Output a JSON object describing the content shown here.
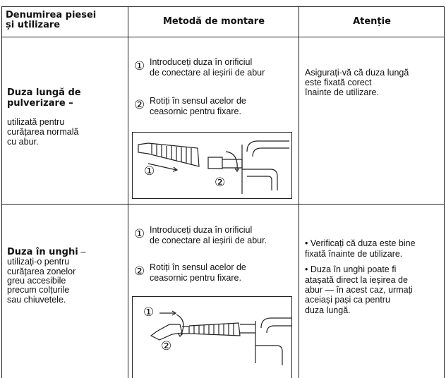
{
  "table": {
    "headers": [
      [
        "Denumirea piesei",
        "și utilizare"
      ],
      "Metodă de montare",
      "Atenție"
    ],
    "rows": [
      [
        {
          "title": [
            "Duza lungă de",
            "pulverizare –"
          ],
          "description": [
            "utilizată pentru",
            "curățarea normală",
            "cu abur."
          ]
        },
        {
          "steps": [
            {
              "marker": "①",
              "lines": [
                "Introduceți duza în orificiul",
                "de conectare al ieșirii de abur"
              ]
            },
            {
              "marker": "②",
              "lines": [
                "Rotiți în sensul acelor de",
                "ceasornic pentru fixare."
              ]
            }
          ],
          "figure_labels": [
            "①",
            "②"
          ]
        },
        {
          "notes": [
            [
              "Asigurați-vă că duza lungă",
              "este fixată corect",
              "înainte de utilizare."
            ]
          ]
        }
      ],
      [
        {
          "title": [
            "Duza în unghi",
            " –"
          ],
          "description": [
            "utilizați-o pentru",
            "curățarea zonelor",
            "greu accesibile",
            "precum colțurile",
            "sau chiuvetele."
          ]
        },
        {
          "steps": [
            {
              "marker": "①",
              "lines": [
                "Introduceți duza în orificiul",
                "de conectare al ieșirii de abur."
              ]
            },
            {
              "marker": "②",
              "lines": [
                "Rotiți în sensul acelor de",
                "ceasornic pentru fixare."
              ]
            }
          ],
          "figure_labels": [
            "①",
            "②"
          ]
        },
        {
          "notes": [
            [
              "• Verificați că duza este bine",
              "fixată înainte de utilizare."
            ],
            [
              "• Duza în unghi poate fi",
              "atașată direct la ieșirea de",
              "abur — în acest caz, urmați",
              "aceiași pași ca pentru",
              "duza lungă."
            ]
          ]
        }
      ]
    ]
  }
}
